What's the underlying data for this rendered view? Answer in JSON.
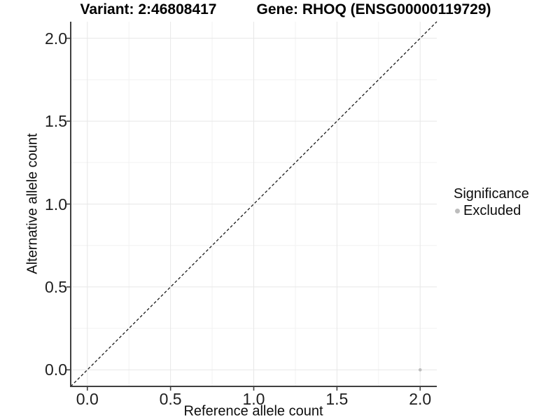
{
  "chart_data": {
    "type": "scatter",
    "title_left": "Variant: 2:46808417",
    "title_right": "Gene: RHOQ (ENSG00000119729)",
    "xlabel": "Reference allele count",
    "ylabel": "Alternative allele count",
    "xlim": [
      -0.1,
      2.1
    ],
    "ylim": [
      -0.1,
      2.1
    ],
    "x_ticks": [
      0.0,
      0.5,
      1.0,
      1.5,
      2.0
    ],
    "x_tick_labels": [
      "0.0",
      "0.5",
      "1.0",
      "1.5",
      "2.0"
    ],
    "y_ticks": [
      0.0,
      0.5,
      1.0,
      1.5,
      2.0
    ],
    "y_tick_labels": [
      "0.0",
      "0.5",
      "1.0",
      "1.5",
      "2.0"
    ],
    "x_minor_ticks": [
      0.25,
      0.75,
      1.25,
      1.75
    ],
    "y_minor_ticks": [
      0.25,
      0.75,
      1.25,
      1.75
    ],
    "grid": true,
    "legend_position": "right",
    "reference_line": {
      "type": "identity",
      "style": "dashed",
      "from": [
        -0.1,
        -0.1
      ],
      "to": [
        2.1,
        2.1
      ],
      "color": "#1a1a1a"
    },
    "series": [
      {
        "name": "Excluded",
        "color": "#bdbdbd",
        "points": [
          {
            "x": 2.0,
            "y": 0.0
          }
        ]
      }
    ],
    "legend": {
      "title": "Significance",
      "entries": [
        {
          "label": "Excluded",
          "color": "#bdbdbd",
          "marker": "circle"
        }
      ]
    }
  },
  "colors": {
    "background": "#ffffff",
    "axis_line": "#404040",
    "tick_mark": "#404040",
    "grid_major": "#e7e7e7",
    "grid_minor": "#f2f2f2",
    "point": "#bdbdbd",
    "dashed_line": "#1a1a1a"
  }
}
